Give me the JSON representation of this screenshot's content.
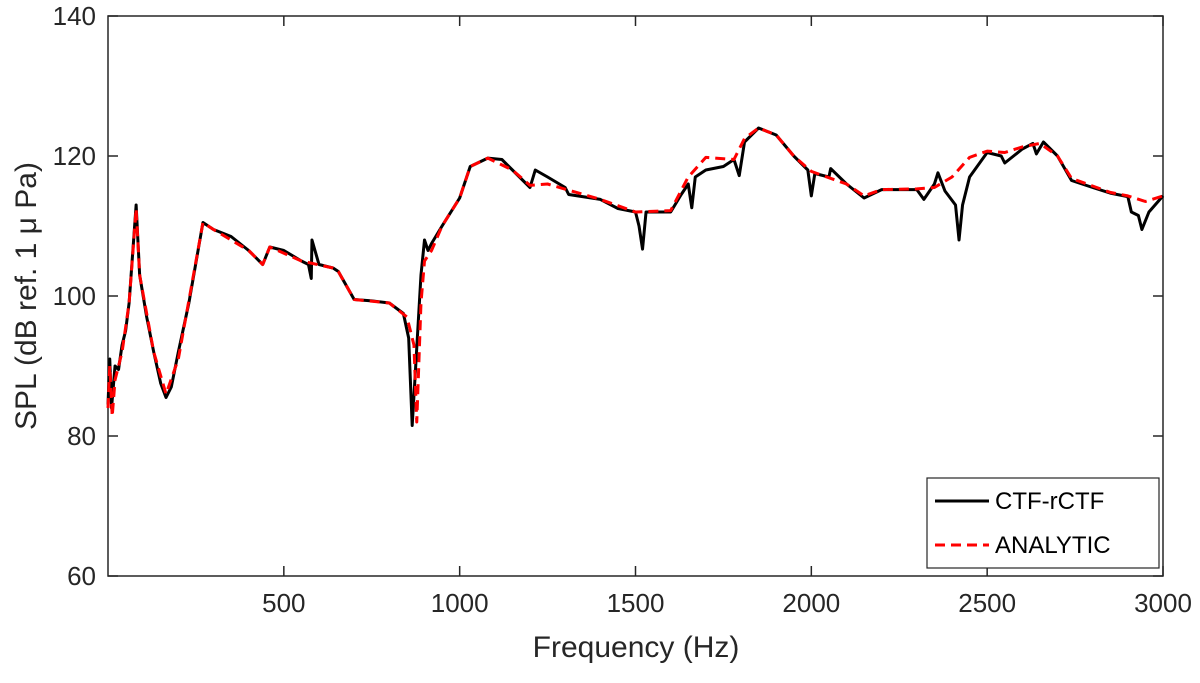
{
  "chart_data": {
    "type": "line",
    "x_label": "Frequency (Hz)",
    "y_label": "SPL (dB ref. 1 μ Pa)",
    "xlim": [
      0,
      3000
    ],
    "xticks": [
      500,
      1000,
      1500,
      2000,
      2500,
      3000
    ],
    "ylim": [
      60,
      140
    ],
    "yticks": [
      60,
      80,
      100,
      120,
      140
    ],
    "grid": false,
    "legend": "lower right",
    "series": [
      {
        "name": "CTF-rCTF",
        "color": "#000000",
        "dash": "solid",
        "x": [
          0,
          5,
          10,
          20,
          30,
          40,
          50,
          60,
          80,
          90,
          110,
          130,
          150,
          165,
          180,
          200,
          230,
          270,
          300,
          350,
          400,
          440,
          460,
          500,
          550,
          570,
          578,
          580,
          600,
          640,
          655,
          700,
          750,
          800,
          840,
          855,
          865,
          875,
          890,
          900,
          910,
          920,
          950,
          1000,
          1030,
          1080,
          1120,
          1150,
          1200,
          1215,
          1250,
          1300,
          1310,
          1400,
          1450,
          1500,
          1510,
          1520,
          1530,
          1600,
          1630,
          1650,
          1660,
          1670,
          1700,
          1750,
          1780,
          1795,
          1810,
          1850,
          1900,
          1950,
          1990,
          2000,
          2010,
          2050,
          2055,
          2100,
          2150,
          2200,
          2300,
          2320,
          2350,
          2360,
          2380,
          2410,
          2420,
          2430,
          2450,
          2500,
          2540,
          2550,
          2600,
          2630,
          2640,
          2660,
          2700,
          2740,
          2800,
          2850,
          2900,
          2910,
          2930,
          2940,
          2960,
          3000
        ],
        "values": [
          84.5,
          91,
          84,
          90,
          89.5,
          93,
          95,
          99,
          113,
          103,
          97,
          92,
          87.5,
          85.5,
          87,
          92,
          99,
          110.5,
          109.5,
          108.5,
          106.5,
          104.5,
          107,
          106.5,
          105,
          104.5,
          102.5,
          108,
          104.5,
          104,
          103.5,
          99.5,
          99.3,
          99,
          97.5,
          94,
          81.5,
          90,
          103,
          108,
          106.5,
          107.5,
          110,
          114,
          118.5,
          119.7,
          119.5,
          118,
          115.5,
          118,
          117,
          115.5,
          114.5,
          113.8,
          112.5,
          112,
          110,
          106.7,
          112,
          112,
          114.5,
          116,
          112.6,
          117,
          118,
          118.5,
          119.5,
          117.2,
          122,
          124,
          123,
          120,
          118,
          114.3,
          117.5,
          117,
          118.2,
          116,
          114,
          115.2,
          115.2,
          113.8,
          116,
          117.6,
          115,
          113,
          108,
          113,
          117,
          120.5,
          120,
          119,
          121,
          121.8,
          120.3,
          122,
          120,
          116.5,
          115.5,
          114.7,
          114.2,
          112,
          111.5,
          109.5,
          112,
          114.3
        ]
      },
      {
        "name": "ANALYTIC",
        "color": "#ff0000",
        "dash": "dashed",
        "x": [
          0,
          5,
          12,
          20,
          40,
          60,
          80,
          90,
          130,
          165,
          200,
          270,
          300,
          400,
          440,
          460,
          550,
          640,
          655,
          700,
          800,
          850,
          870,
          878,
          890,
          900,
          920,
          950,
          1000,
          1030,
          1080,
          1150,
          1200,
          1250,
          1400,
          1500,
          1600,
          1650,
          1700,
          1780,
          1810,
          1850,
          1900,
          1950,
          2000,
          2100,
          2150,
          2200,
          2300,
          2350,
          2400,
          2450,
          2500,
          2550,
          2600,
          2650,
          2700,
          2740,
          2850,
          2900,
          2950,
          3000
        ],
        "values": [
          84,
          90,
          82.8,
          88,
          92,
          99,
          112.5,
          103,
          92,
          86,
          91,
          110.5,
          109.5,
          106.5,
          104.5,
          107,
          105,
          104,
          103.5,
          99.5,
          99,
          97,
          93,
          82,
          99,
          105,
          106.5,
          110,
          114,
          118.5,
          119.7,
          118,
          115.8,
          116,
          113.8,
          112,
          112.2,
          117,
          119.8,
          119.5,
          122.5,
          124,
          123,
          120,
          117.8,
          116,
          114.3,
          115.2,
          115.3,
          115.5,
          117,
          119.8,
          120.7,
          120.5,
          121.3,
          121.8,
          120,
          116.8,
          114.8,
          114.3,
          113.5,
          114.3
        ]
      }
    ]
  }
}
